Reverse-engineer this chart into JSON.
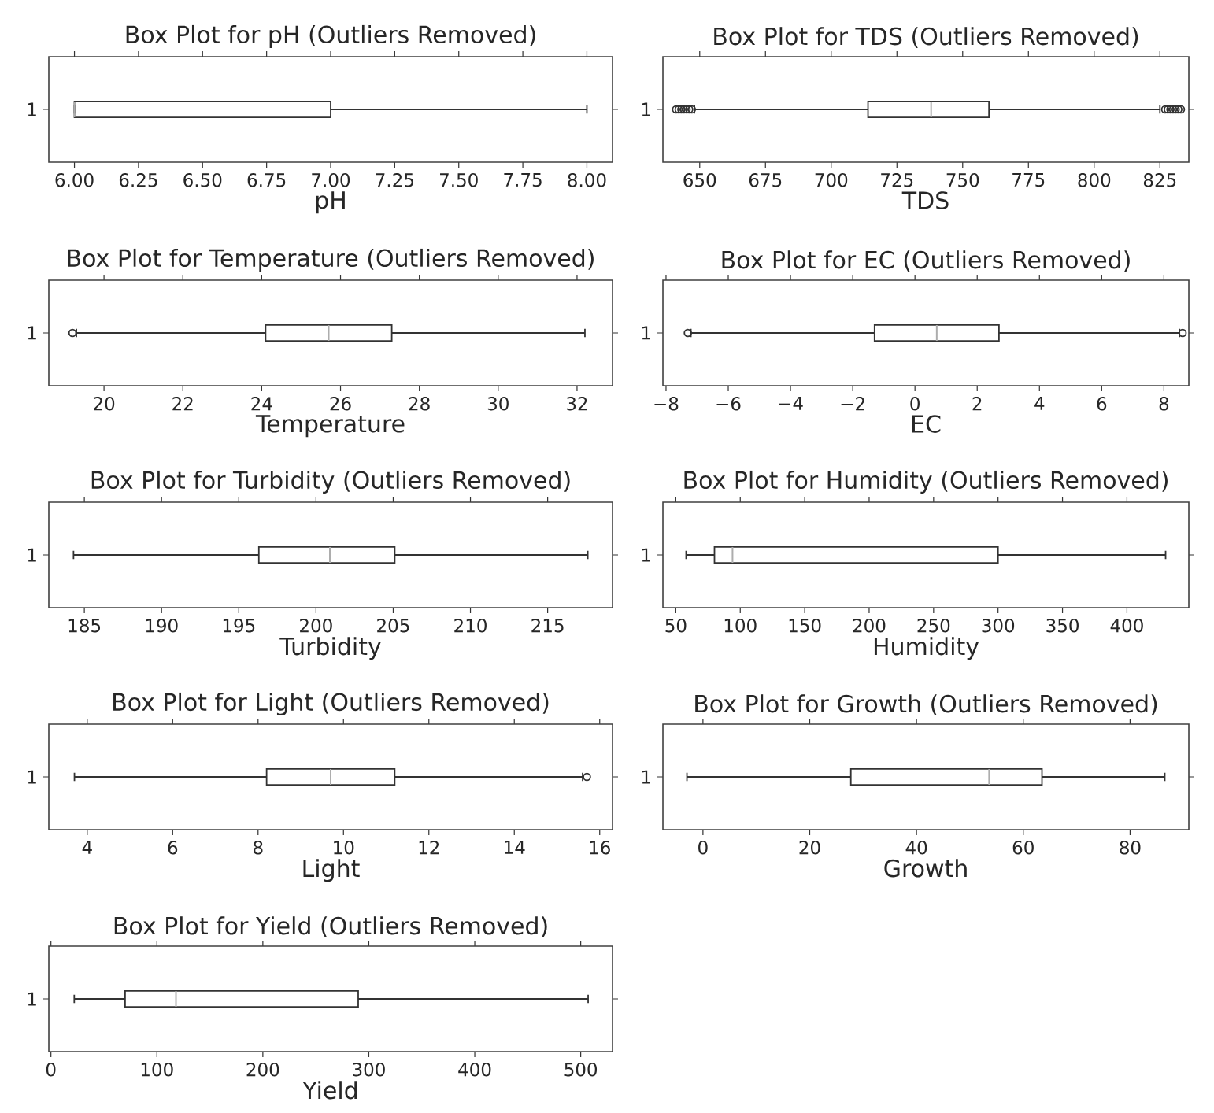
{
  "chart_data": [
    {
      "type": "box",
      "title": "Box Plot for pH (Outliers Removed)",
      "xlabel": "pH",
      "categories": [
        "1"
      ],
      "orientation": "horizontal",
      "color": "#333333",
      "marker": "circle",
      "boxes": [
        {
          "low": 6.0,
          "q1": 6.0,
          "median": 6.0,
          "q3": 7.0,
          "high": 8.0
        }
      ],
      "xlim": [
        5.9,
        8.1
      ],
      "xticks": [
        {
          "value": 6,
          "label": "6.00"
        },
        {
          "value": 6.25,
          "label": "6.25"
        },
        {
          "value": 6.5,
          "label": "6.50"
        },
        {
          "value": 6.75,
          "label": "6.75"
        },
        {
          "value": 7,
          "label": "7.00"
        },
        {
          "value": 7.25,
          "label": "7.25"
        },
        {
          "value": 7.5,
          "label": "7.50"
        },
        {
          "value": 7.75,
          "label": "7.75"
        },
        {
          "value": 8,
          "label": "8.00"
        }
      ]
    },
    {
      "type": "box",
      "title": "Box Plot for TDS (Outliers Removed)",
      "xlabel": "TDS",
      "categories": [
        "1"
      ],
      "orientation": "horizontal",
      "color": "#333333",
      "marker": "circle",
      "boxes": [
        {
          "low": 648,
          "q1": 714,
          "median": 738,
          "q3": 760,
          "high": 825,
          "outliers": [
            641,
            642,
            643,
            644,
            645,
            646,
            647,
            827,
            828,
            829,
            830,
            831,
            832,
            833
          ]
        }
      ],
      "xlim": [
        636,
        836
      ],
      "xticks": [
        650,
        675,
        700,
        725,
        750,
        775,
        800,
        825
      ]
    },
    {
      "type": "box",
      "title": "Box Plot for Temperature (Outliers Removed)",
      "xlabel": "Temperature",
      "categories": [
        "1"
      ],
      "orientation": "horizontal",
      "color": "#333333",
      "marker": "circle",
      "boxes": [
        {
          "low": 19.3,
          "q1": 24.1,
          "median": 25.7,
          "q3": 27.3,
          "high": 32.2,
          "outliers": [
            19.2
          ]
        }
      ],
      "xlim": [
        18.6,
        32.9
      ],
      "xticks": [
        20,
        22,
        24,
        26,
        28,
        30,
        32
      ]
    },
    {
      "type": "box",
      "title": "Box Plot for EC (Outliers Removed)",
      "xlabel": "EC",
      "categories": [
        "1"
      ],
      "orientation": "horizontal",
      "color": "#333333",
      "marker": "circle",
      "boxes": [
        {
          "low": -7.2,
          "q1": -1.3,
          "median": 0.7,
          "q3": 2.7,
          "high": 8.5,
          "outliers": [
            -7.3,
            8.6
          ]
        }
      ],
      "xlim": [
        -8.1,
        8.8
      ],
      "xticks": [
        {
          "value": -8,
          "label": "−8"
        },
        {
          "value": -6,
          "label": "−6"
        },
        {
          "value": -4,
          "label": "−4"
        },
        {
          "value": -2,
          "label": "−2"
        },
        0,
        2,
        4,
        6,
        8
      ]
    },
    {
      "type": "box",
      "title": "Box Plot for Turbidity (Outliers Removed)",
      "xlabel": "Turbidity",
      "categories": [
        "1"
      ],
      "orientation": "horizontal",
      "color": "#333333",
      "marker": "circle",
      "boxes": [
        {
          "low": 184.3,
          "q1": 196.3,
          "median": 200.9,
          "q3": 205.1,
          "high": 217.6
        }
      ],
      "xlim": [
        182.7,
        219.2
      ],
      "xticks": [
        185,
        190,
        195,
        200,
        205,
        210,
        215
      ]
    },
    {
      "type": "box",
      "title": "Box Plot for Humidity (Outliers Removed)",
      "xlabel": "Humidity",
      "categories": [
        "1"
      ],
      "orientation": "horizontal",
      "color": "#333333",
      "marker": "circle",
      "boxes": [
        {
          "low": 58,
          "q1": 80,
          "median": 94,
          "q3": 300,
          "high": 430
        }
      ],
      "xlim": [
        40,
        448
      ],
      "xticks": [
        50,
        100,
        150,
        200,
        250,
        300,
        350,
        400
      ]
    },
    {
      "type": "box",
      "title": "Box Plot for Light (Outliers Removed)",
      "xlabel": "Light",
      "categories": [
        "1"
      ],
      "orientation": "horizontal",
      "color": "#333333",
      "marker": "circle",
      "boxes": [
        {
          "low": 3.7,
          "q1": 8.2,
          "median": 9.7,
          "q3": 11.2,
          "high": 15.6,
          "outliers": [
            15.7
          ]
        }
      ],
      "xlim": [
        3.1,
        16.3
      ],
      "xticks": [
        4,
        6,
        8,
        10,
        12,
        14,
        16
      ]
    },
    {
      "type": "box",
      "title": "Box Plot for Growth (Outliers Removed)",
      "xlabel": "Growth",
      "categories": [
        "1"
      ],
      "orientation": "horizontal",
      "color": "#333333",
      "marker": "circle",
      "boxes": [
        {
          "low": -3,
          "q1": 27.7,
          "median": 53.6,
          "q3": 63.5,
          "high": 86.5
        }
      ],
      "xlim": [
        -7.5,
        91
      ],
      "xticks": [
        0,
        20,
        40,
        60,
        80
      ]
    },
    {
      "type": "box",
      "title": "Box Plot for Yield (Outliers Removed)",
      "xlabel": "Yield",
      "categories": [
        "1"
      ],
      "orientation": "horizontal",
      "color": "#333333",
      "marker": "circle",
      "boxes": [
        {
          "low": 22,
          "q1": 70,
          "median": 118,
          "q3": 290,
          "high": 507
        }
      ],
      "xlim": [
        -2,
        530
      ],
      "xticks": [
        0,
        100,
        200,
        300,
        400,
        500
      ]
    }
  ]
}
